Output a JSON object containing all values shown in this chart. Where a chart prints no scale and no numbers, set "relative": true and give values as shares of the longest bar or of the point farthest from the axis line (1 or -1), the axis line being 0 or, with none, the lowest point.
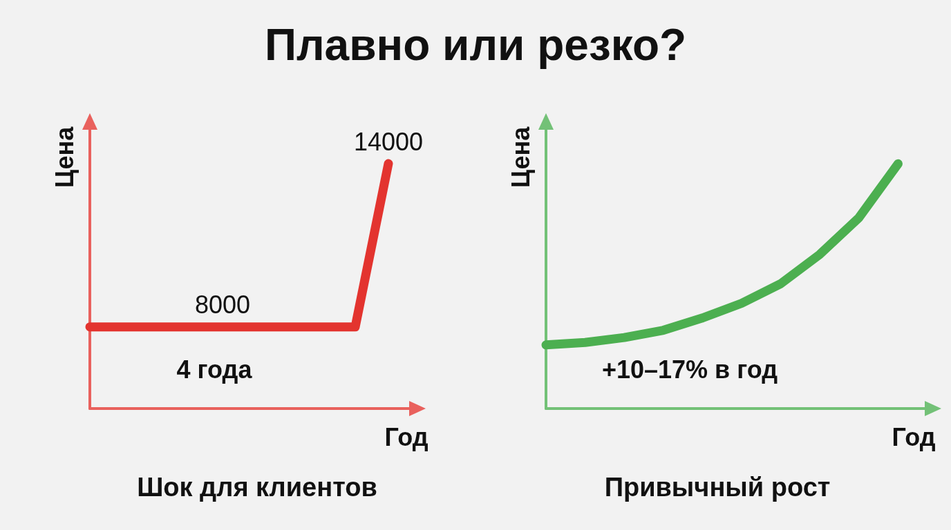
{
  "chart_data": [
    {
      "type": "line",
      "title": "Плавно или резко?",
      "subtitle": "Шок для клиентов",
      "xlabel": "Год",
      "ylabel": "Цена",
      "annotations": [
        "4 года"
      ],
      "categories": [
        null,
        null,
        null,
        null,
        null,
        null,
        null,
        null,
        null,
        null,
        null
      ],
      "series": [
        {
          "color": "#e3342f",
          "values": [
            8000,
            8000,
            8000,
            8000,
            8000,
            8000,
            8000,
            8000,
            8000,
            14000,
            null
          ],
          "value_labels": [
            null,
            null,
            null,
            null,
            "8000",
            null,
            null,
            null,
            null,
            "14000",
            null
          ]
        }
      ],
      "ylim": [
        5000,
        15700
      ],
      "tick_labels": false,
      "marker": "none",
      "line_style": "solid"
    },
    {
      "type": "line",
      "relative": true,
      "subtitle": "Привычный рост",
      "xlabel": "Год",
      "ylabel": "Цена",
      "annotations": [
        "+10–17% в год"
      ],
      "categories": [
        null,
        null,
        null,
        null,
        null,
        null,
        null,
        null,
        null,
        null,
        null
      ],
      "series": [
        {
          "color": "#4caf50",
          "values": [
            0.26,
            0.27,
            0.29,
            0.32,
            0.37,
            0.43,
            0.51,
            0.63,
            0.78,
            1.0,
            null
          ]
        }
      ],
      "marker": "none",
      "line_style": "solid"
    }
  ]
}
